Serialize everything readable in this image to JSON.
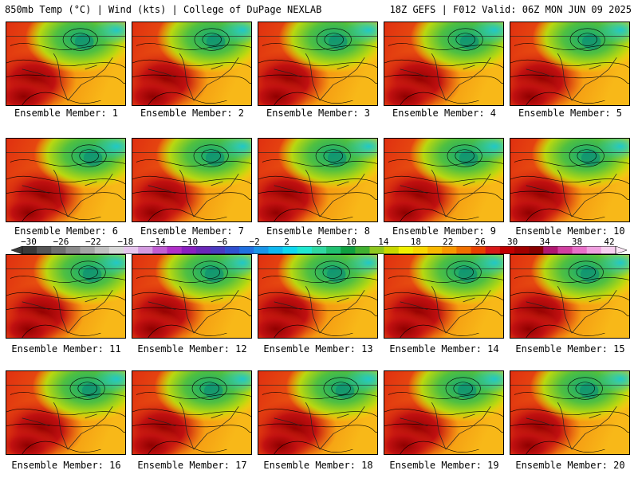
{
  "header": {
    "left": "850mb Temp (°C) | Wind (kts) | College of DuPage NEXLAB",
    "right": "18Z GEFS | F012 Valid: 06Z MON JUN 09 2025"
  },
  "caption_prefix": "Ensemble Member: ",
  "members": [
    1,
    2,
    3,
    4,
    5,
    6,
    7,
    8,
    9,
    10,
    11,
    12,
    13,
    14,
    15,
    16,
    17,
    18,
    19,
    20
  ],
  "colorbar": {
    "ticks": [
      "-30",
      "-26",
      "-22",
      "-18",
      "-14",
      "-10",
      "-6",
      "-2",
      "2",
      "6",
      "10",
      "14",
      "18",
      "22",
      "26",
      "30",
      "34",
      "38",
      "42"
    ],
    "colors": [
      "#3a3a3a",
      "#555555",
      "#707070",
      "#8a8a8a",
      "#a5a5a5",
      "#c0c0c0",
      "#d8d8d8",
      "#e7c7ee",
      "#d49be0",
      "#c15ed2",
      "#b030c8",
      "#8a20c0",
      "#6a28b8",
      "#4a3ac0",
      "#3050d0",
      "#2070e0",
      "#1a95e8",
      "#10b8f0",
      "#10d8f0",
      "#20e8d0",
      "#30d8a0",
      "#20c070",
      "#10a040",
      "#40b030",
      "#90c820",
      "#c8d800",
      "#f0f000",
      "#f8d800",
      "#f8b800",
      "#f89800",
      "#f07000",
      "#e84000",
      "#d81818",
      "#c00000",
      "#a00000",
      "#880000",
      "#b01870",
      "#d040a0",
      "#e870c8",
      "#f0a0e0",
      "#f8d0f0"
    ]
  }
}
